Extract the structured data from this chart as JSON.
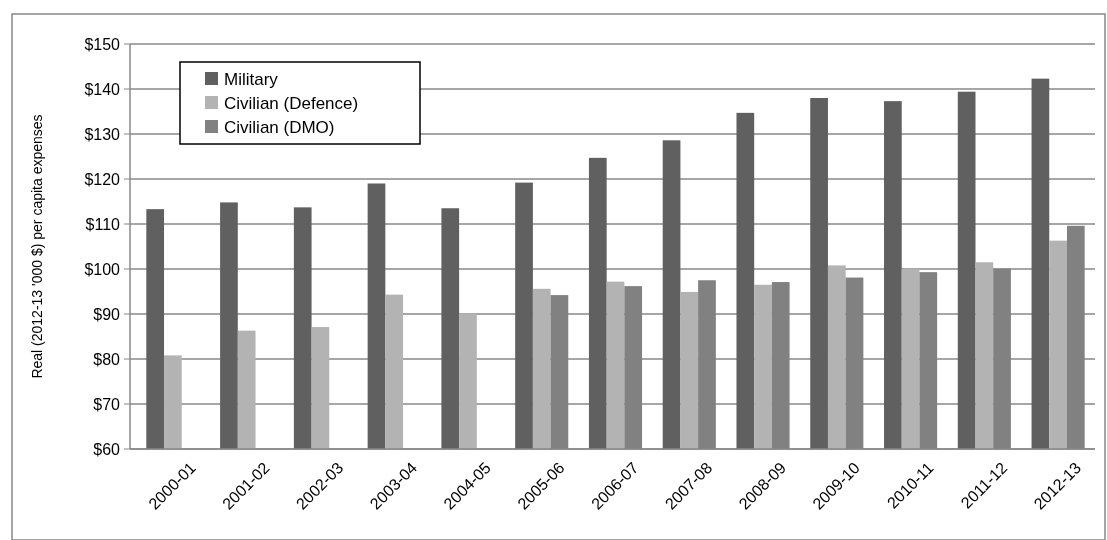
{
  "chart_data": {
    "type": "bar",
    "ylabel": "Real (2012-13 '000 $) per capita expenses",
    "categories": [
      "2000-01",
      "2001-02",
      "2002-03",
      "2003-04",
      "2004-05",
      "2005-06",
      "2006-07",
      "2007-08",
      "2008-09",
      "2009-10",
      "2010-11",
      "2011-12",
      "2012-13"
    ],
    "series": [
      {
        "name": "Military",
        "color": "#606060",
        "values": [
          113.3,
          114.8,
          113.7,
          119,
          113.5,
          119.2,
          124.7,
          128.6,
          134.7,
          138,
          137.3,
          139.4,
          142.3
        ]
      },
      {
        "name": "Civilian (Defence)",
        "color": "#b3b3b3",
        "values": [
          80.8,
          86.3,
          87.1,
          94.3,
          90.1,
          95.6,
          97.2,
          94.9,
          96.5,
          100.8,
          100,
          101.5,
          106.3
        ]
      },
      {
        "name": "Civilian (DMO)",
        "color": "#818181",
        "values": [
          null,
          null,
          null,
          null,
          null,
          94.2,
          96.2,
          97.5,
          97.1,
          98.1,
          99.3,
          100.1,
          109.6
        ]
      }
    ],
    "ylim": [
      60,
      150
    ],
    "yticks": [
      {
        "value": 60,
        "label": "$60"
      },
      {
        "value": 70,
        "label": "$70"
      },
      {
        "value": 80,
        "label": "$80"
      },
      {
        "value": 90,
        "label": "$90"
      },
      {
        "value": 100,
        "label": "$100"
      },
      {
        "value": 110,
        "label": "$110"
      },
      {
        "value": 120,
        "label": "$120"
      },
      {
        "value": 130,
        "label": "$130"
      },
      {
        "value": 140,
        "label": "$140"
      },
      {
        "value": 150,
        "label": "$150"
      }
    ],
    "grid": "y",
    "legend": "top left"
  }
}
